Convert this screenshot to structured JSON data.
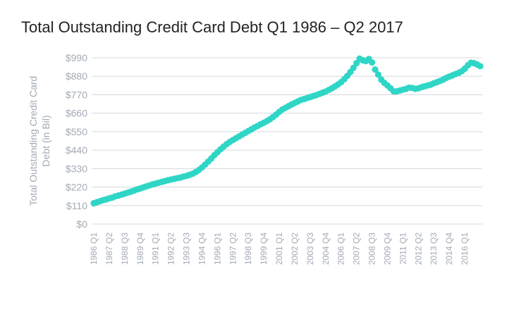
{
  "chart_data": {
    "type": "scatter",
    "title": "Total Outstanding Credit Card Debt Q1 1986 – Q2 2017",
    "ylabel": "Total Outstanding Credit Card Debt (in Bil)",
    "ylabel_lines": [
      "Total Outstanding Credit Card",
      "Debt (in Bil)"
    ],
    "xlabel": "",
    "ylim": [
      0,
      990
    ],
    "ytick_labels": [
      "$0",
      "$110",
      "$220",
      "$330",
      "$440",
      "$550",
      "$660",
      "$770",
      "$880",
      "$990"
    ],
    "yticks": [
      0,
      110,
      220,
      330,
      440,
      550,
      660,
      770,
      880,
      990
    ],
    "xtick_labels": [
      "1986 Q1",
      "1987 Q2",
      "1988 Q3",
      "1989 Q4",
      "1991 Q1",
      "1992 Q2",
      "1993 Q3",
      "1994 Q4",
      "1996 Q1",
      "1997 Q2",
      "1998 Q3",
      "1999 Q4",
      "2001 Q1",
      "2002 Q2",
      "2003 Q3",
      "2004 Q4",
      "2006 Q1",
      "2007 Q2",
      "2008 Q3",
      "2009 Q4",
      "2011 Q1",
      "2012 Q2",
      "2013 Q3",
      "2014 Q4",
      "2016 Q1"
    ],
    "grid": true,
    "color": "#2fd6c6",
    "series": [
      {
        "x_start": "1986 Q1",
        "x_end": "2017 Q2",
        "values": [
          124,
          130,
          136,
          142,
          147,
          153,
          158,
          165,
          170,
          175,
          181,
          187,
          193,
          199,
          206,
          212,
          218,
          224,
          230,
          236,
          241,
          246,
          251,
          256,
          261,
          265,
          269,
          273,
          277,
          282,
          287,
          293,
          300,
          310,
          322,
          337,
          354,
          372,
          390,
          410,
          428,
          445,
          461,
          476,
          489,
          500,
          511,
          522,
          533,
          543,
          554,
          564,
          575,
          584,
          594,
          603,
          613,
          624,
          637,
          652,
          668,
          682,
          692,
          702,
          712,
          721,
          730,
          739,
          744,
          750,
          756,
          762,
          768,
          775,
          782,
          789,
          798,
          808,
          819,
          831,
          845,
          862,
          882,
          905,
          930,
          958,
          985,
          975,
          970,
          983,
          962,
          920,
          890,
          860,
          840,
          825,
          808,
          790,
          790,
          795,
          800,
          805,
          812,
          810,
          805,
          808,
          815,
          820,
          825,
          830,
          838,
          845,
          852,
          860,
          870,
          878,
          885,
          893,
          900,
          910,
          925,
          945,
          960,
          958,
          950,
          940
        ]
      }
    ]
  }
}
